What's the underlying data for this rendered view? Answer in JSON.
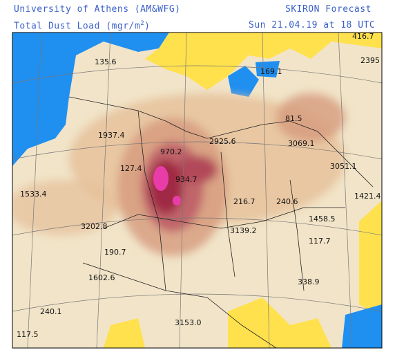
{
  "header": {
    "institution": "University of Athens (AM&WFG)",
    "product": "SKIRON Forecast",
    "title_main": "Total Dust Load (mgr/m",
    "title_sup": "2",
    "title_end": ")",
    "valid_time": "Sun 21.04.19 at 18 UTC"
  },
  "map": {
    "labels": [
      "416.7",
      "2395",
      "135.6",
      "169.1",
      "81.5",
      "1937.4",
      "2925.6",
      "3069.1",
      "970.2",
      "127.4",
      "3051.1",
      "934.7",
      "1533.4",
      "216.7",
      "240.6",
      "1421.4",
      "1458.5",
      "3202.8",
      "3139.2",
      "117.7",
      "190.7",
      "1602.6",
      "338.9",
      "240.1",
      "3153.0",
      "117.5"
    ]
  }
}
